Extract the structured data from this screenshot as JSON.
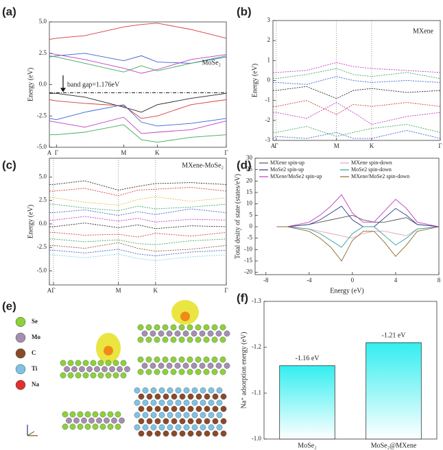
{
  "chart_data": [
    {
      "type": "line",
      "label": "(a)",
      "ylabel": "Energy (eV)",
      "line_style": "solid",
      "xgrid": false,
      "xlim": [
        0,
        1
      ],
      "xticks": [
        {
          "value": 0,
          "label": "A"
        },
        {
          "value": 0.04,
          "label": "Γ"
        },
        {
          "value": 0.42,
          "label": "M"
        },
        {
          "value": 0.61,
          "label": "K"
        },
        {
          "value": 1,
          "label": "Γ"
        }
      ],
      "ylim": [
        -5,
        5
      ],
      "yticks": [
        {
          "value": 5,
          "label": "5.0"
        },
        {
          "value": 2.5,
          "label": "2.5"
        },
        {
          "value": 0,
          "label": "0.0"
        },
        {
          "value": -2.5,
          "label": "-2.5"
        },
        {
          "value": -5,
          "label": "-5.0"
        }
      ],
      "x": [
        0,
        0.04,
        0.2,
        0.42,
        0.52,
        0.61,
        0.8,
        1
      ],
      "series": [
        {
          "color": "#d43a3a",
          "values": [
            3.6,
            3.7,
            3.9,
            4.6,
            4.8,
            4.9,
            4.4,
            3.7
          ]
        },
        {
          "color": "#3a5fd4",
          "values": [
            2.2,
            2.3,
            2.5,
            1.9,
            2.3,
            1.8,
            1.7,
            2.2
          ]
        },
        {
          "color": "#3aa85a",
          "values": [
            2.3,
            2.2,
            1.7,
            1.0,
            1.5,
            1.1,
            1.7,
            2.3
          ]
        },
        {
          "color": "#c03ac0",
          "values": [
            2.5,
            2.4,
            2.0,
            1.3,
            0.9,
            1.2,
            2.0,
            2.4
          ]
        },
        {
          "color": "#222222",
          "values": [
            -0.7,
            -0.7,
            -1.0,
            -1.8,
            -2.2,
            -1.6,
            -1.1,
            -0.7
          ]
        },
        {
          "color": "#d43a3a",
          "values": [
            -1.2,
            -1.3,
            -1.5,
            -1.7,
            -2.7,
            -2.5,
            -1.6,
            -1.2
          ]
        },
        {
          "color": "#3a5fd4",
          "values": [
            -2.7,
            -2.8,
            -2.2,
            -1.6,
            -3.0,
            -3.3,
            -3.1,
            -2.7
          ]
        },
        {
          "color": "#c03ac0",
          "values": [
            -2.9,
            -3.0,
            -3.4,
            -2.6,
            -3.9,
            -3.8,
            -3.6,
            -2.9
          ]
        },
        {
          "color": "#3aa85a",
          "values": [
            -4.0,
            -4.0,
            -3.8,
            -3.2,
            -4.4,
            -4.6,
            -4.2,
            -4.0
          ]
        }
      ],
      "reference_line": -0.65,
      "annotations": [
        "MoSe₂",
        "band gap=1.176eV"
      ]
    },
    {
      "type": "line",
      "label": "(b)",
      "ylabel": "Energy (eV)",
      "line_style": "dotted",
      "xgrid": true,
      "xlim": [
        0,
        1
      ],
      "xticks": [
        {
          "value": 0,
          "label": "A"
        },
        {
          "value": 0.02,
          "label": "Γ"
        },
        {
          "value": 0.38,
          "label": "M"
        },
        {
          "value": 0.59,
          "label": "K"
        },
        {
          "value": 1,
          "label": "Γ"
        }
      ],
      "ylim": [
        -3,
        3
      ],
      "yticks": [
        3,
        2,
        1,
        0,
        -1,
        -2,
        -3
      ],
      "x": [
        0,
        0.02,
        0.2,
        0.38,
        0.48,
        0.59,
        0.8,
        1
      ],
      "series": [
        {
          "color": "#c03ac0",
          "values": [
            0.4,
            0.4,
            0.5,
            0.9,
            0.7,
            0.6,
            0.5,
            0.4
          ]
        },
        {
          "color": "#3aa85a",
          "values": [
            0.1,
            0.1,
            0.3,
            0.6,
            0.3,
            0.2,
            0.4,
            0.1
          ]
        },
        {
          "color": "#3a5fd4",
          "values": [
            -0.1,
            -0.1,
            -0.2,
            0.2,
            0.0,
            -0.1,
            0.0,
            -0.1
          ]
        },
        {
          "color": "#222222",
          "values": [
            -0.5,
            -0.5,
            -0.3,
            -0.9,
            -0.5,
            -0.4,
            -0.6,
            -0.5
          ]
        },
        {
          "color": "#d43a3a",
          "values": [
            -1.3,
            -1.3,
            -1.0,
            -1.7,
            -1.2,
            -1.3,
            -1.1,
            -1.3
          ]
        },
        {
          "color": "#c03ac0",
          "values": [
            -1.6,
            -1.6,
            -1.9,
            -1.1,
            -1.6,
            -2.2,
            -1.8,
            -1.6
          ]
        },
        {
          "color": "#3aa85a",
          "values": [
            -2.6,
            -2.6,
            -2.3,
            -2.8,
            -2.6,
            -2.4,
            -2.2,
            -2.6
          ]
        },
        {
          "color": "#3a5fd4",
          "values": [
            -2.9,
            -2.8,
            -2.9,
            -2.6,
            -2.9,
            -2.9,
            -2.5,
            -2.9
          ]
        }
      ],
      "annotations": [
        "MXene"
      ]
    },
    {
      "type": "line",
      "label": "(c)",
      "ylabel": "Energy (eV)",
      "line_style": "dotted",
      "xgrid": true,
      "xlim": [
        0,
        1
      ],
      "xticks": [
        {
          "value": 0,
          "label": "A"
        },
        {
          "value": 0.023,
          "label": "Γ"
        },
        {
          "value": 0.39,
          "label": "M"
        },
        {
          "value": 0.6,
          "label": "K"
        },
        {
          "value": 1,
          "label": "Γ"
        }
      ],
      "ylim": [
        -6.5,
        7
      ],
      "yticks": [
        {
          "value": 5,
          "label": "5.0"
        },
        {
          "value": 2.5,
          "label": "2.5"
        },
        {
          "value": 0,
          "label": "0.0"
        },
        {
          "value": -2.5,
          "label": "-2.5"
        },
        {
          "value": -5,
          "label": "-5.0"
        }
      ],
      "x": [
        0,
        0.023,
        0.2,
        0.39,
        0.5,
        0.6,
        0.8,
        1
      ],
      "series": [
        {
          "color": "#222222",
          "values": [
            4.2,
            4.2,
            4.6,
            3.6,
            4.0,
            4.3,
            4.4,
            4.2
          ]
        },
        {
          "color": "#d43a3a",
          "values": [
            3.5,
            3.5,
            3.8,
            3.0,
            3.6,
            3.7,
            3.9,
            3.5
          ]
        },
        {
          "color": "#e0c040",
          "values": [
            2.8,
            2.8,
            2.3,
            2.0,
            2.6,
            2.9,
            2.4,
            2.8
          ]
        },
        {
          "color": "#3aa85a",
          "values": [
            2.1,
            2.1,
            1.7,
            1.4,
            1.9,
            1.6,
            1.8,
            2.1
          ]
        },
        {
          "color": "#3a5fd4",
          "values": [
            1.2,
            1.2,
            1.5,
            0.9,
            1.3,
            1.0,
            1.6,
            1.2
          ]
        },
        {
          "color": "#c03ac0",
          "values": [
            0.4,
            0.4,
            0.8,
            0.3,
            0.6,
            0.2,
            0.5,
            0.4
          ]
        },
        {
          "color": "#222222",
          "values": [
            -0.3,
            -0.3,
            0.1,
            -0.4,
            -0.1,
            -0.5,
            -0.2,
            -0.3
          ]
        },
        {
          "color": "#d43a3a",
          "values": [
            -0.9,
            -0.9,
            -1.2,
            -1.1,
            -1.4,
            -1.0,
            -1.3,
            -0.9
          ]
        },
        {
          "color": "#3aa85a",
          "values": [
            -1.6,
            -1.6,
            -1.9,
            -1.7,
            -2.1,
            -2.2,
            -1.8,
            -1.6
          ]
        },
        {
          "color": "#8a5a2a",
          "values": [
            -2.3,
            -2.3,
            -2.6,
            -2.0,
            -2.6,
            -2.9,
            -2.7,
            -2.3
          ]
        },
        {
          "color": "#3a5fd4",
          "values": [
            -2.8,
            -2.8,
            -3.1,
            -2.7,
            -3.2,
            -3.4,
            -3.0,
            -2.8
          ]
        },
        {
          "color": "#7fd0e0",
          "values": [
            -3.3,
            -3.3,
            -3.6,
            -3.2,
            -3.7,
            -3.9,
            -3.5,
            -3.3
          ]
        }
      ],
      "annotations": [
        "MXene-MoSe₂"
      ]
    },
    {
      "type": "line",
      "label": "(d)",
      "ylabel": "Total desity of state (states/eV)",
      "xlabel": "Energy (eV)",
      "line_style": "solid",
      "xgrid": false,
      "xlim": [
        -9,
        8
      ],
      "xticks": [
        -8,
        -4,
        0,
        4,
        8
      ],
      "ylim": [
        -21,
        30
      ],
      "yticks": [
        30,
        25,
        20,
        15,
        10,
        5,
        0,
        -5,
        -10,
        -15,
        -20
      ],
      "x": [
        -7,
        -6,
        -5,
        -4,
        -3,
        -2,
        -1,
        0,
        1,
        2,
        3,
        4,
        5,
        6,
        7,
        8
      ],
      "series": [
        {
          "name": "MXene spin-up",
          "color": "#555555",
          "values": [
            0,
            0,
            0.5,
            1,
            2,
            3,
            4,
            5,
            3,
            2,
            2,
            3,
            4,
            1,
            0.5,
            0
          ]
        },
        {
          "name": "MXene spin-down",
          "color": "#e8a0b8",
          "values": [
            0,
            0,
            -0.5,
            -1,
            -2,
            -3,
            -4,
            -5,
            -3,
            -2,
            -2,
            -3,
            -4,
            -1,
            -0.5,
            0
          ]
        },
        {
          "name": "MoSe2 spin-up",
          "color": "#2a3a80",
          "values": [
            0,
            0,
            0.5,
            1,
            3,
            6,
            9,
            3,
            0,
            0,
            4,
            8,
            5,
            1,
            0.5,
            0
          ]
        },
        {
          "name": "MoSe2 spin-down",
          "color": "#2aa0a0",
          "values": [
            0,
            0,
            -0.5,
            -1,
            -3,
            -6,
            -9,
            -3,
            0,
            0,
            -4,
            -8,
            -5,
            -1,
            -0.5,
            0
          ]
        },
        {
          "name": "MXene/MoSe2 spin-up",
          "color": "#c03ac0",
          "values": [
            0,
            0,
            1,
            2,
            5,
            9,
            14,
            6,
            2,
            2,
            7,
            12,
            8,
            2,
            1,
            0
          ]
        },
        {
          "name": "MXene/MoSe2 spin-down",
          "color": "#8a6a2a",
          "values": [
            0,
            0,
            -1,
            -2,
            -5,
            -9,
            -15,
            -6,
            -2,
            -2,
            -7,
            -13,
            -8,
            -2,
            -1,
            0
          ]
        }
      ]
    },
    {
      "type": "bar",
      "label": "(f)",
      "ylabel": "Na⁺ adsorption energy (eV)",
      "color": "#33eef0",
      "categories": [
        "MoSe₂",
        "MoSe₂@MXene"
      ],
      "values": [
        -1.16,
        -1.21
      ],
      "value_labels": [
        "-1.16 eV",
        "-1.21 eV"
      ],
      "ylim": [
        -1.0,
        -1.3
      ],
      "yticks": [
        -1.3,
        -1.2,
        -1.1,
        {
          "value": -1.0,
          "label": "-1.0"
        }
      ]
    }
  ],
  "structure_panel": {
    "label": "(e)",
    "atoms": [
      {
        "label": "Se",
        "color": "#8cd13a"
      },
      {
        "label": "Mo",
        "color": "#a58fb0"
      },
      {
        "label": "C",
        "color": "#8a4a2a"
      },
      {
        "label": "Ti",
        "color": "#7ec3e6"
      },
      {
        "label": "Na",
        "color": "#e03030"
      }
    ]
  }
}
